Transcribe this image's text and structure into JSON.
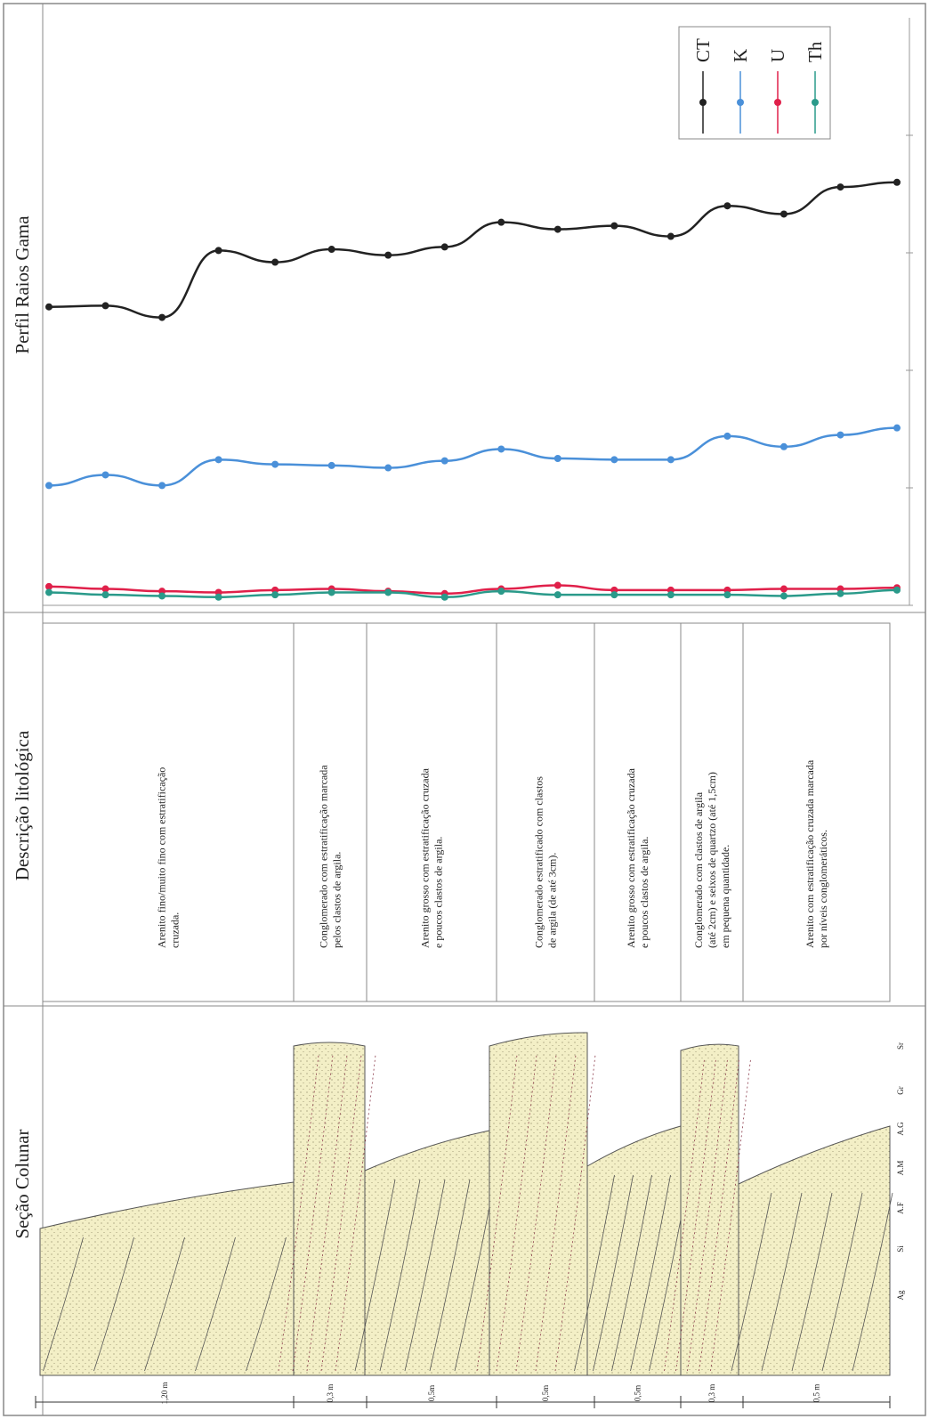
{
  "chart_data": {
    "type": "line",
    "title": "Perfil Raios Gama",
    "categories": [
      null,
      null,
      null,
      null,
      null,
      null,
      null,
      null,
      null,
      null,
      null,
      null,
      null,
      null,
      null,
      null
    ],
    "ylim": [
      0,
      5
    ],
    "yticks": [
      0,
      1,
      2,
      3,
      4
    ],
    "legend": "top-right",
    "series": [
      {
        "name": "CT",
        "color": "#222222",
        "values": [
          2.54,
          2.55,
          2.45,
          3.02,
          2.92,
          3.03,
          2.98,
          3.05,
          3.26,
          3.2,
          3.23,
          3.14,
          3.4,
          3.33,
          3.56,
          3.6
        ]
      },
      {
        "name": "K",
        "color": "#4a90d9",
        "values": [
          1.02,
          1.11,
          1.02,
          1.24,
          1.2,
          1.19,
          1.17,
          1.23,
          1.33,
          1.25,
          1.24,
          1.24,
          1.44,
          1.35,
          1.45,
          1.51
        ]
      },
      {
        "name": "U",
        "color": "#e0204a",
        "values": [
          0.16,
          0.14,
          0.12,
          0.11,
          0.13,
          0.14,
          0.12,
          0.1,
          0.14,
          0.17,
          0.13,
          0.13,
          0.13,
          0.14,
          0.14,
          0.15
        ]
      },
      {
        "name": "Th",
        "color": "#2a9a8a",
        "values": [
          0.11,
          0.09,
          0.08,
          0.07,
          0.09,
          0.11,
          0.11,
          0.07,
          0.12,
          0.09,
          0.09,
          0.09,
          0.09,
          0.08,
          0.1,
          0.13
        ]
      }
    ]
  },
  "description": {
    "title": "Descrição litológica",
    "rows": [
      {
        "lines": [
          "Arenito fino/muito fino com estratificação",
          "cruzada."
        ]
      },
      {
        "lines": [
          "Conglomerado com estratificação marcada",
          "pelos clastos de argila."
        ]
      },
      {
        "lines": [
          "Arenito grosso com estratificação cruzada",
          "e poucos clastos de argila."
        ]
      },
      {
        "lines": [
          "Conglomerado estratificado com clastos",
          "de argila (de até 3cm)."
        ]
      },
      {
        "lines": [
          "Arenito grosso com estratificação cruzada",
          "e poucos clastos de argila."
        ]
      },
      {
        "lines": [
          "Conglomerado com clastos de argila",
          "(até 2cm) e seixos de quartzo (até 1,5cm)",
          "em pequena quantidade."
        ]
      },
      {
        "lines": [
          "Arenito com estratificação cruzada marcada",
          "por níveis conglomeráticos."
        ]
      }
    ]
  },
  "section": {
    "title": "Seção Colunar",
    "grain_sizes": [
      "Sr",
      "Gr",
      "A.G",
      "A.M",
      "A.F",
      "Si",
      "Ag"
    ],
    "thicknesses": [
      "1,20 m",
      "0,3 m",
      "0,5m",
      "0,5m",
      "0,5m",
      "0,3 m",
      "0,5 m"
    ]
  }
}
